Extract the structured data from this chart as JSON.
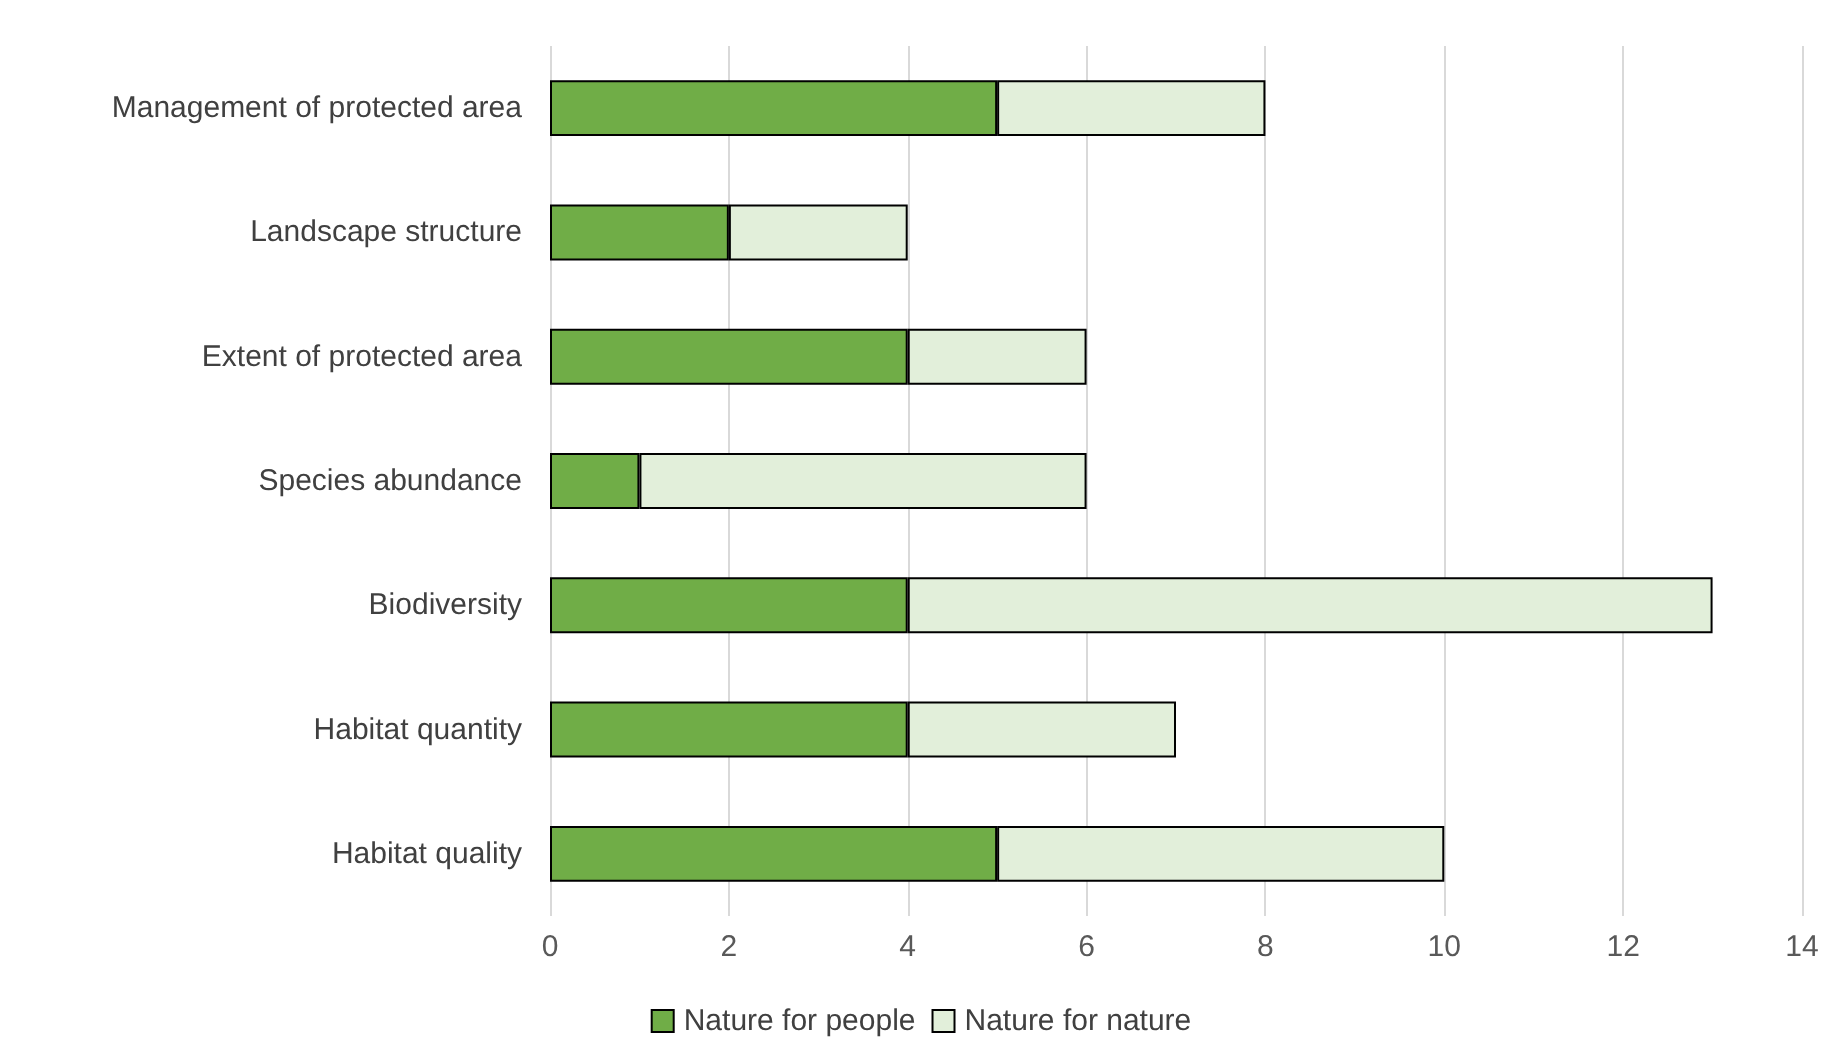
{
  "chart_data": {
    "type": "bar",
    "orientation": "horizontal",
    "stacked": true,
    "categories": [
      "Management of protected area",
      "Landscape structure",
      "Extent of protected area",
      "Species abundance",
      "Biodiversity",
      "Habitat quantity",
      "Habitat quality"
    ],
    "series": [
      {
        "name": "Nature for people",
        "color": "#70ad47",
        "values": [
          5,
          2,
          4,
          1,
          4,
          4,
          5
        ]
      },
      {
        "name": "Nature for nature",
        "color": "#e2efda",
        "values": [
          3,
          2,
          2,
          5,
          9,
          3,
          5
        ]
      }
    ],
    "xlim": [
      0,
      14
    ],
    "xticks": [
      0,
      2,
      4,
      6,
      8,
      10,
      12,
      14
    ],
    "grid": "x",
    "legend": "bottom"
  }
}
